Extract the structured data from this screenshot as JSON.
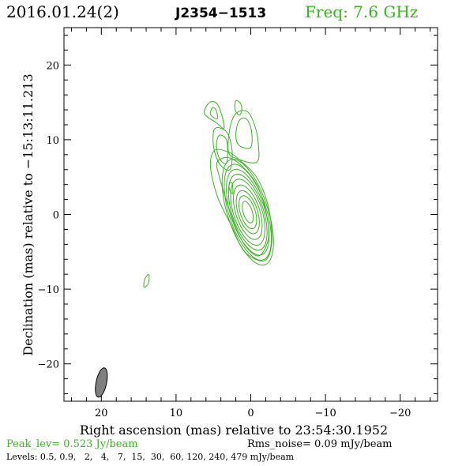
{
  "header": {
    "date": "2016.01.24(2)",
    "source": "J2354−1513",
    "freq": "Freq: 7.6 GHz"
  },
  "colors": {
    "contour": "#3fad28",
    "axis": "#000000",
    "beam": "#808080"
  },
  "footer": {
    "peak": "Peak_lev=  0.523 Jy/beam",
    "rms": "Rms_noise= 0.09 mJy/beam",
    "levels": "Levels: 0.5, 0.9,   2,   4,   7,  15,  30,  60, 120, 240, 479 mJy/beam"
  },
  "chart_data": {
    "type": "contour",
    "xlabel": "Right ascension (mas) relative to 23:54:30.1952",
    "ylabel": "Declination (mas) relative to −15:13:11.213",
    "xlim": [
      25,
      -25
    ],
    "ylim": [
      -25,
      25
    ],
    "xticks": [
      20,
      10,
      0,
      -10,
      -20
    ],
    "yticks": [
      20,
      10,
      0,
      -10,
      -20
    ],
    "xtick_labels": [
      "20",
      "10",
      "0",
      "−10",
      "−20"
    ],
    "ytick_labels": [
      "20",
      "10",
      "0",
      "−10",
      "−20"
    ],
    "levels_mJy_per_beam": [
      0.5,
      0.9,
      2,
      4,
      7,
      15,
      30,
      60,
      120,
      240,
      479
    ],
    "peak_Jy_per_beam": 0.523,
    "rms_noise_mJy_per_beam": 0.09,
    "beam": {
      "center": [
        20,
        -22.5
      ],
      "major_mas": 4.0,
      "minor_mas": 1.4,
      "pa_deg": -12
    },
    "core": {
      "center": [
        0.4,
        0.3
      ],
      "pa_deg": -18
    },
    "core_contours": [
      {
        "rx": 0.6,
        "ry": 1.5
      },
      {
        "rx": 1.0,
        "ry": 2.3
      },
      {
        "rx": 1.3,
        "ry": 3.0
      },
      {
        "rx": 1.6,
        "ry": 3.8
      },
      {
        "rx": 1.9,
        "ry": 4.6
      },
      {
        "rx": 2.1,
        "ry": 5.3
      },
      {
        "rx": 2.3,
        "ry": 6.0
      },
      {
        "rx": 2.5,
        "ry": 6.7
      },
      {
        "rx": 2.7,
        "ry": 7.4
      }
    ],
    "outer_contours": [
      [
        [
          -1.2,
          -5.5
        ],
        [
          0.5,
          -4.5
        ],
        [
          2.0,
          -1.8
        ],
        [
          3.3,
          2.0
        ],
        [
          4.2,
          5.0
        ],
        [
          4.5,
          7.0
        ],
        [
          3.0,
          7.6
        ],
        [
          1.2,
          6.5
        ],
        [
          -0.8,
          4.0
        ],
        [
          -2.0,
          0.5
        ],
        [
          -2.4,
          -3.0
        ]
      ],
      [
        [
          -1.8,
          -6.2
        ],
        [
          0.8,
          -5.0
        ],
        [
          2.6,
          -1.5
        ],
        [
          4.5,
          2.5
        ],
        [
          5.4,
          6.5
        ],
        [
          4.8,
          8.6
        ],
        [
          2.9,
          8.3
        ],
        [
          1.4,
          7.2
        ],
        [
          -0.9,
          4.8
        ],
        [
          -2.4,
          0.8
        ],
        [
          -2.8,
          -3.8
        ]
      ],
      [
        [
          -0.8,
          7.0
        ],
        [
          2.0,
          7.5
        ],
        [
          3.0,
          8.5
        ],
        [
          2.8,
          11.5
        ],
        [
          2.0,
          13.5
        ],
        [
          0.5,
          13.8
        ],
        [
          -0.5,
          12.0
        ],
        [
          -1.0,
          9.5
        ]
      ],
      [
        [
          0.0,
          9.0
        ],
        [
          1.5,
          9.2
        ],
        [
          2.0,
          10.5
        ],
        [
          1.6,
          12.5
        ],
        [
          0.6,
          12.8
        ],
        [
          -0.1,
          11.2
        ]
      ],
      [
        [
          2.8,
          6.0
        ],
        [
          4.2,
          6.8
        ],
        [
          5.0,
          9.2
        ],
        [
          4.8,
          11.5
        ],
        [
          3.2,
          11.0
        ],
        [
          2.5,
          8.5
        ]
      ],
      [
        [
          3.3,
          6.8
        ],
        [
          4.2,
          7.5
        ],
        [
          4.6,
          9.3
        ],
        [
          4.2,
          10.6
        ],
        [
          3.3,
          10.1
        ],
        [
          3.1,
          8.5
        ]
      ],
      [
        [
          3.6,
          11.5
        ],
        [
          4.5,
          12.2
        ],
        [
          6.2,
          13.5
        ],
        [
          5.5,
          15.0
        ],
        [
          4.5,
          14.8
        ],
        [
          3.8,
          13.0
        ]
      ],
      [
        [
          4.5,
          12.8
        ],
        [
          5.4,
          13.4
        ],
        [
          5.1,
          14.3
        ],
        [
          4.6,
          13.9
        ]
      ],
      [
        [
          2.4,
          2.8
        ],
        [
          2.8,
          3.2
        ],
        [
          2.9,
          4.0
        ],
        [
          2.5,
          4.2
        ]
      ],
      [
        [
          1.5,
          13.3
        ],
        [
          2.1,
          14.0
        ],
        [
          2.0,
          15.2
        ],
        [
          1.4,
          14.9
        ],
        [
          1.2,
          14.1
        ]
      ],
      [
        [
          13.7,
          -8.0
        ],
        [
          14.2,
          -8.7
        ],
        [
          14.3,
          -9.7
        ],
        [
          13.8,
          -9.4
        ],
        [
          13.6,
          -8.6
        ]
      ]
    ]
  }
}
